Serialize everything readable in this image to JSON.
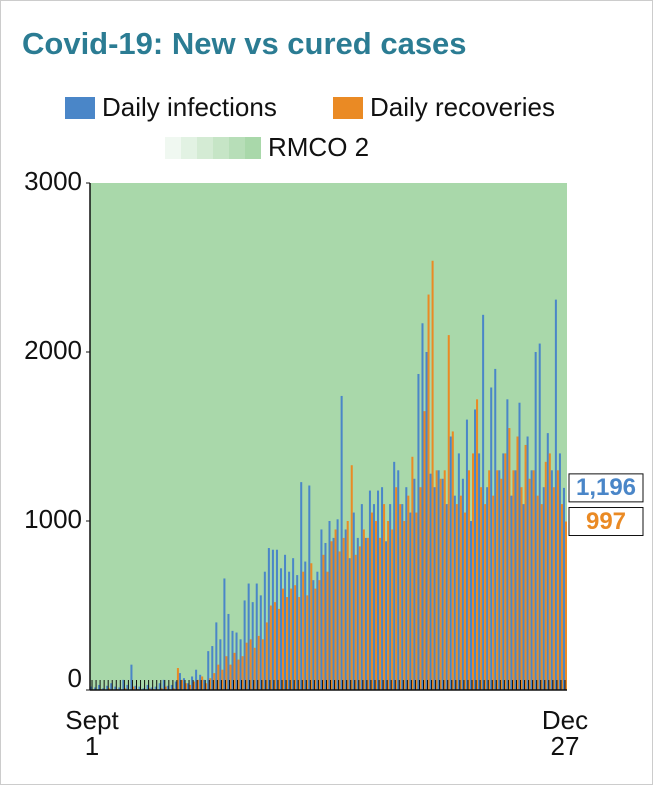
{
  "chart_data": {
    "type": "bar",
    "title": "Covid-19: New vs cured cases",
    "background_region": {
      "name": "RMCO 2",
      "color": "#a9d8aa"
    },
    "categories": [
      "Sept\n1",
      null,
      null,
      null,
      null,
      null,
      null,
      null,
      null,
      null,
      null,
      null,
      null,
      null,
      null,
      null,
      null,
      null,
      null,
      null,
      null,
      null,
      null,
      null,
      null,
      null,
      null,
      null,
      null,
      null,
      null,
      null,
      null,
      null,
      null,
      null,
      null,
      null,
      null,
      null,
      null,
      null,
      null,
      null,
      null,
      null,
      null,
      null,
      null,
      null,
      null,
      null,
      null,
      null,
      null,
      null,
      null,
      null,
      null,
      null,
      null,
      null,
      null,
      null,
      null,
      null,
      null,
      null,
      null,
      null,
      null,
      null,
      null,
      null,
      null,
      null,
      null,
      null,
      null,
      null,
      null,
      null,
      null,
      null,
      null,
      null,
      null,
      null,
      null,
      null,
      null,
      null,
      null,
      null,
      null,
      null,
      null,
      null,
      null,
      null,
      null,
      null,
      null,
      null,
      null,
      null,
      null,
      null,
      null,
      null,
      null,
      null,
      null,
      null,
      null,
      null,
      null,
      "Dec\n27"
    ],
    "series": [
      {
        "name": "Daily infections",
        "color": "#4a86c8",
        "values": [
          20,
          15,
          30,
          10,
          25,
          40,
          20,
          15,
          60,
          30,
          150,
          25,
          20,
          10,
          30,
          15,
          20,
          40,
          60,
          25,
          30,
          50,
          100,
          70,
          40,
          80,
          120,
          90,
          60,
          230,
          260,
          400,
          300,
          660,
          450,
          350,
          340,
          300,
          530,
          630,
          520,
          630,
          560,
          700,
          840,
          830,
          830,
          720,
          800,
          700,
          780,
          680,
          1230,
          760,
          1210,
          650,
          700,
          950,
          870,
          1000,
          900,
          1010,
          1740,
          950,
          780,
          1050,
          900,
          1100,
          900,
          1180,
          1100,
          1180,
          1200,
          880,
          1100,
          1350,
          1300,
          1100,
          1200,
          1050,
          1250,
          1870,
          2170,
          2000,
          1280,
          1200,
          1300,
          1250,
          1100,
          1500,
          1150,
          1400,
          1250,
          1600,
          1000,
          1660,
          1400,
          2220,
          1200,
          1790,
          1900,
          1300,
          1400,
          1720,
          1150,
          1300,
          1700,
          1100,
          1500,
          1300,
          2000,
          2050,
          1200,
          1520,
          1300,
          2310,
          1400,
          1196
        ],
        "value_labels": [
          null,
          null,
          null,
          null,
          null,
          null,
          null,
          null,
          null,
          null,
          null,
          null,
          null,
          null,
          null,
          null,
          null,
          null,
          null,
          null,
          null,
          null,
          null,
          null,
          null,
          null,
          null,
          null,
          null,
          null,
          null,
          null,
          null,
          null,
          null,
          null,
          null,
          null,
          null,
          null,
          null,
          null,
          null,
          null,
          null,
          null,
          null,
          null,
          null,
          null,
          null,
          null,
          null,
          null,
          null,
          null,
          null,
          null,
          null,
          null,
          null,
          null,
          null,
          null,
          null,
          null,
          null,
          null,
          null,
          null,
          null,
          null,
          null,
          null,
          null,
          null,
          null,
          null,
          null,
          null,
          null,
          null,
          null,
          null,
          null,
          null,
          null,
          null,
          null,
          null,
          null,
          null,
          null,
          null,
          null,
          null,
          null,
          null,
          null,
          null,
          null,
          null,
          null,
          null,
          null,
          null,
          null,
          null,
          null,
          null,
          null,
          null,
          null,
          null,
          null,
          null,
          null,
          "1,196"
        ]
      },
      {
        "name": "Daily recoveries",
        "color": "#ea8a24",
        "values": [
          0,
          0,
          5,
          0,
          10,
          0,
          5,
          0,
          10,
          0,
          20,
          5,
          0,
          0,
          10,
          5,
          0,
          10,
          20,
          5,
          10,
          130,
          60,
          40,
          30,
          50,
          60,
          80,
          40,
          70,
          100,
          150,
          120,
          200,
          150,
          220,
          180,
          200,
          280,
          300,
          250,
          320,
          300,
          400,
          500,
          520,
          480,
          600,
          550,
          600,
          620,
          550,
          700,
          560,
          750,
          600,
          650,
          800,
          700,
          880,
          950,
          820,
          900,
          1000,
          1330,
          800,
          850,
          950,
          900,
          1050,
          1000,
          900,
          1100,
          1000,
          950,
          1200,
          1100,
          1000,
          1150,
          1380,
          1050,
          1200,
          1650,
          2340,
          2540,
          1300,
          1250,
          1300,
          2100,
          1530,
          1100,
          1150,
          1050,
          1300,
          1400,
          1720,
          1200,
          1100,
          1300,
          1150,
          1300,
          1250,
          1400,
          1550,
          1300,
          1500,
          1200,
          1450,
          1250,
          1300,
          1150,
          1100,
          1350,
          1400,
          1200,
          1300,
          1100,
          997
        ]
      }
    ],
    "ylim": [
      0,
      3000
    ],
    "yticks": [
      0,
      1000,
      2000,
      3000
    ],
    "grid": false
  }
}
